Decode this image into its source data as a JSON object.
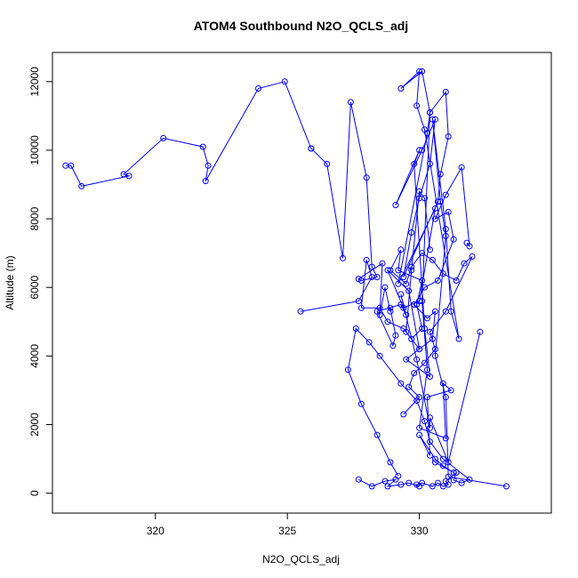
{
  "chart_data": {
    "type": "scatter",
    "title": "ATOM4 Southbound N2O_QCLS_adj",
    "xlabel": "N2O_QCLS_adj",
    "ylabel": "Altitude (m)",
    "xlim": [
      316.1,
      335.0
    ],
    "ylim": [
      -580,
      12850
    ],
    "xticks": [
      320,
      325,
      330
    ],
    "xtick_labels": [
      "320",
      "325",
      "330"
    ],
    "yticks": [
      0,
      2000,
      4000,
      6000,
      8000,
      10000,
      12000
    ],
    "ytick_labels": [
      "0",
      "2000",
      "4000",
      "6000",
      "8000",
      "10000",
      "12000"
    ],
    "grid": false,
    "legend": "none",
    "line_type": "connected points (open circles joined in sampling order)",
    "color": "#0000ff",
    "series": [
      {
        "x": [
          333.3,
          331.1,
          331.0,
          330.6,
          331.0,
          330.8,
          330.5,
          331.0,
          331.2,
          331.5,
          330.2,
          329.9,
          330.0,
          329.3,
          330.1,
          330.4,
          330.3,
          329.2,
          330.6,
          330.0,
          329.4,
          328.8,
          329.6,
          330.0,
          329.5,
          330.4,
          330.2,
          329.8,
          330.0,
          329.1,
          330.1,
          330.6,
          330.4,
          330.0,
          329.7,
          329.4,
          330.7,
          330.8,
          331.1,
          331.0,
          330.4,
          330.1,
          330.3,
          330.0,
          331.0,
          330.9,
          331.2,
          330.3,
          330.4,
          330.0,
          330.6,
          330.9,
          331.3,
          330.6
        ],
        "y": [
          200,
          480,
          2800,
          4000,
          7500,
          8500,
          10900,
          7700,
          5300,
          4500,
          10600,
          11300,
          12300,
          11800,
          12300,
          11100,
          10500,
          6100,
          8300,
          5600,
          5400,
          6500,
          5900,
          4200,
          3900,
          3400,
          4800,
          9600,
          10000,
          8400,
          10000,
          10900,
          9600,
          8600,
          7600,
          6300,
          8500,
          9300,
          10400,
          11700,
          11100,
          5600,
          3600,
          1900,
          1600,
          3200,
          3000,
          2800,
          1100,
          1700,
          1000,
          800,
          600,
          900
        ]
      },
      {
        "x": [
          331.8,
          331.9,
          331.6,
          331.0,
          330.6,
          331.1,
          331.3,
          330.7,
          330.2,
          329.8,
          330.3,
          330.6,
          330.5,
          330.0,
          329.5,
          329.7,
          330.0,
          330.2,
          330.4
        ],
        "y": [
          7300,
          7200,
          9500,
          8700,
          8000,
          8200,
          7400,
          6200,
          6000,
          5500,
          5100,
          5300,
          4500,
          4200,
          4700,
          6500,
          8800,
          8600,
          7100
        ]
      },
      {
        "x": [
          316.6,
          316.8,
          317.2,
          319.0,
          318.8,
          320.3,
          321.8,
          322.0,
          321.9,
          323.9,
          324.9,
          325.9,
          325.9,
          326.5,
          327.1,
          327.4,
          328.0,
          328.2,
          328.4,
          327.8,
          327.7,
          328.6,
          328.5,
          328.7,
          328.9,
          328.9,
          329.1,
          329.0,
          328.4,
          329.3,
          329.5,
          329.3,
          329.9,
          330.4,
          330.4,
          331.1,
          332.3
        ],
        "y": [
          9550,
          9550,
          8950,
          9250,
          9300,
          10350,
          10100,
          9550,
          9100,
          11800,
          12000,
          10050,
          10050,
          9600,
          6850,
          11400,
          9200,
          6600,
          6300,
          6200,
          6250,
          6700,
          5200,
          6000,
          5300,
          5400,
          4600,
          4300,
          5300,
          5500,
          5200,
          5800,
          3900,
          1900,
          2200,
          900,
          4700
        ]
      },
      {
        "x": [
          325.5,
          327.7,
          328.2,
          328.0,
          327.8,
          328.5,
          328.8,
          329.4,
          329.7,
          330.1,
          329.9,
          330.1,
          329.2,
          329.3,
          328.9,
          329.5,
          329.7,
          330.1,
          330.5,
          330.9,
          331.4,
          331.7,
          332.0,
          331.0,
          330.4,
          330.6,
          330.2,
          329.8,
          329.6,
          330.0,
          329.4
        ],
        "y": [
          5300,
          5600,
          6300,
          6800,
          5400,
          5400,
          5000,
          4800,
          4500,
          4800,
          5500,
          6200,
          6500,
          7100,
          6500,
          6100,
          6600,
          7000,
          6800,
          6400,
          6200,
          6700,
          6900,
          5300,
          4700,
          4200,
          3800,
          3500,
          3100,
          2800,
          2300
        ]
      },
      {
        "x": [
          327.7,
          328.2,
          328.7,
          329.1,
          328.8,
          329.3,
          329.6,
          330.0,
          329.9,
          330.1,
          330.5,
          330.7,
          330.9,
          331.1,
          331.0,
          331.4,
          331.3,
          331.6,
          331.9,
          330.9,
          330.4,
          330.2,
          329.9,
          329.3,
          328.5,
          328.1,
          327.6,
          327.3,
          327.8,
          328.4,
          328.9,
          329.2
        ],
        "y": [
          400,
          200,
          350,
          400,
          200,
          250,
          300,
          200,
          250,
          300,
          200,
          300,
          200,
          250,
          350,
          600,
          380,
          300,
          400,
          1000,
          1500,
          2100,
          2700,
          3200,
          4000,
          4400,
          4800,
          3600,
          2600,
          1700,
          900,
          500
        ]
      }
    ]
  }
}
